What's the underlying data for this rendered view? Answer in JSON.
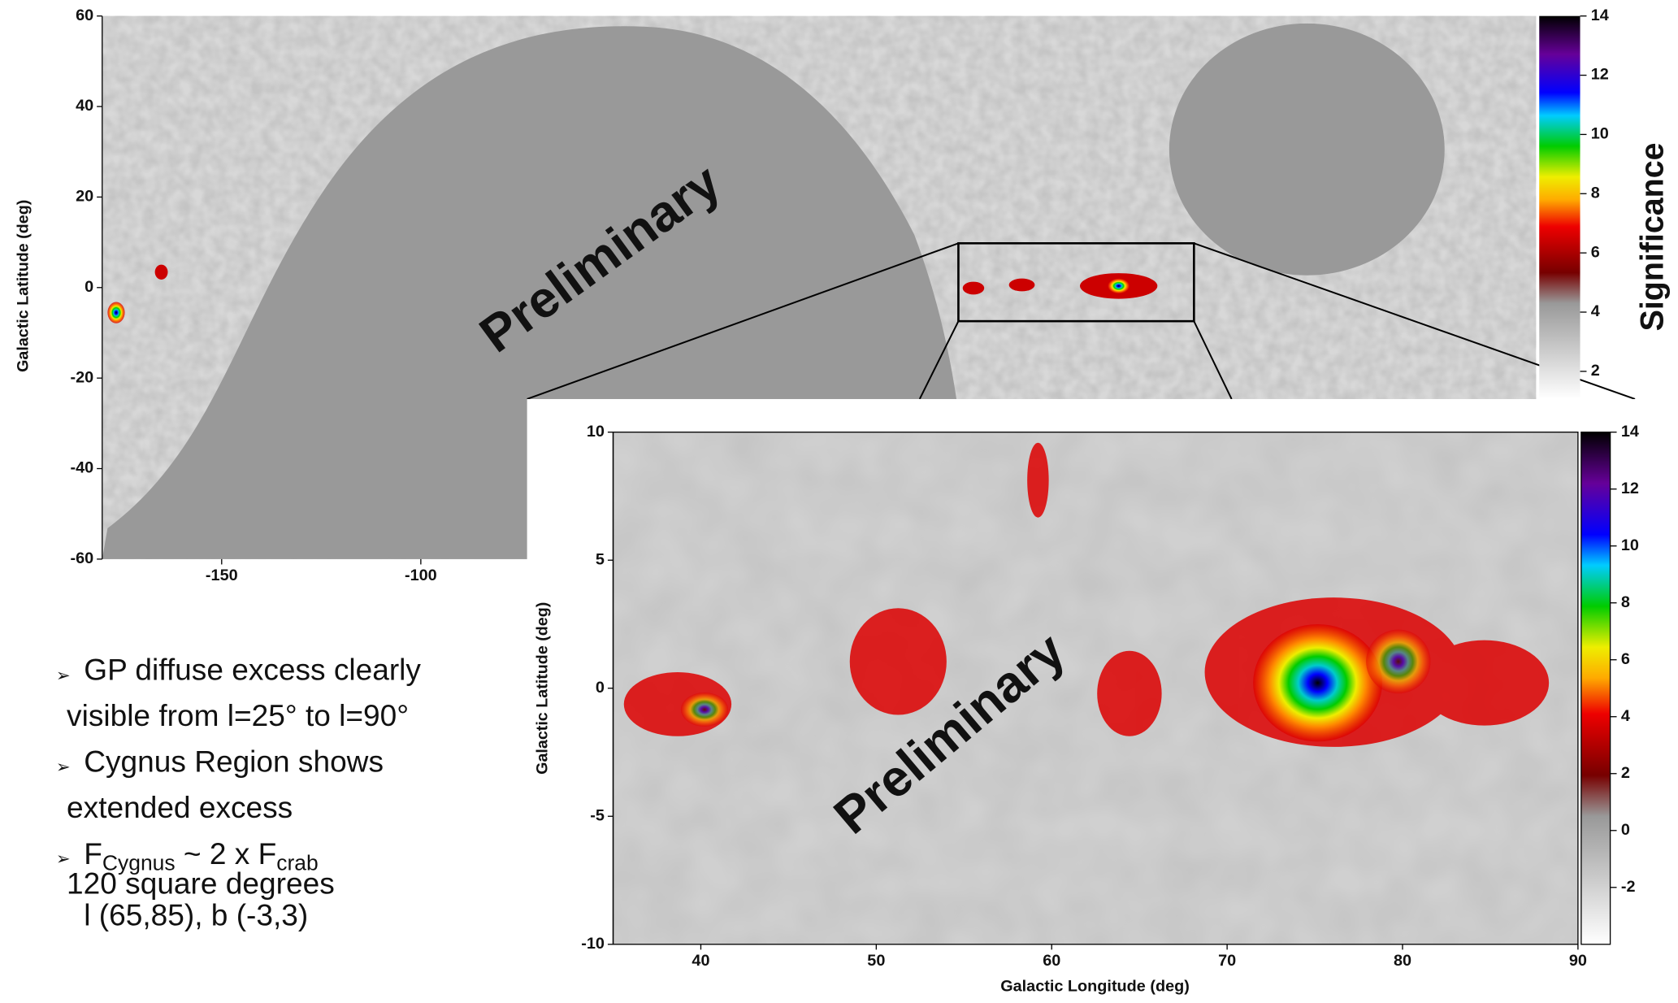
{
  "top_map": {
    "ylabel": "Galactic Latitude (deg)",
    "xlim": [
      -180,
      180
    ],
    "xticks": [
      -150,
      -100
    ],
    "ylim": [
      -60,
      60
    ],
    "yticks": [
      -60,
      -40,
      -20,
      0,
      20,
      40,
      60
    ],
    "watermark": "Preliminary",
    "colorbar": {
      "label": "Significance",
      "lim": [
        1.1,
        14
      ],
      "ticks": [
        2,
        4,
        6,
        8,
        10,
        12,
        14
      ]
    }
  },
  "inset_map": {
    "xlabel": "Galactic Longitude (deg)",
    "ylabel": "Galactic Latitude (deg)",
    "xlim": [
      35,
      90
    ],
    "xticks": [
      40,
      50,
      60,
      70,
      80,
      90
    ],
    "ylim": [
      -10,
      10
    ],
    "yticks": [
      -10,
      -5,
      0,
      5,
      10
    ],
    "watermark": "Preliminary",
    "colorbar": {
      "lim": [
        -4,
        14
      ],
      "ticks": [
        -2,
        0,
        2,
        4,
        6,
        8,
        10,
        12,
        14
      ]
    }
  },
  "bullets": [
    {
      "lines": [
        "GP diffuse excess clearly",
        "visible from l=25° to l=90°"
      ]
    },
    {
      "lines": [
        "Cygnus Region shows",
        "extended excess"
      ]
    },
    {
      "parts": [
        "F",
        "Cygnus",
        " ~ 2 x F",
        "crab"
      ],
      "lines": [
        "120 square degrees",
        "l (65,85), b (-3,3)"
      ]
    }
  ]
}
